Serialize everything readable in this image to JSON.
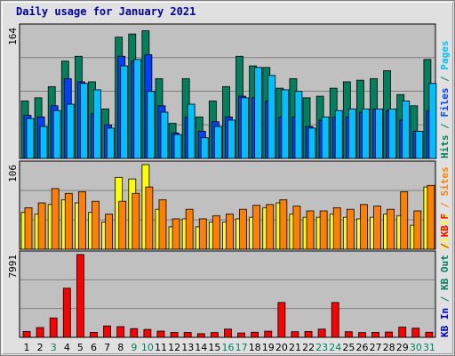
{
  "title": "Daily usage for January 2021",
  "colors": {
    "hits": "#00805c",
    "files": "#0040ff",
    "pages": "#00c0ff",
    "visits": "#ffff00",
    "sites": "#ff8000",
    "kbin": "#0000c0",
    "kbout": "#008060",
    "kbf": "#ff0000",
    "weekend": "#00805c",
    "weekday": "#000000",
    "panel": "#c0c0c0"
  },
  "chart_data": [
    {
      "type": "bar",
      "name": "hits-files-pages",
      "ymax_label": "164",
      "ylim": [
        0,
        164
      ],
      "categories": [
        "1",
        "2",
        "3",
        "4",
        "5",
        "6",
        "7",
        "8",
        "9",
        "10",
        "11",
        "12",
        "13",
        "14",
        "15",
        "16",
        "17",
        "18",
        "19",
        "20",
        "21",
        "22",
        "23",
        "24",
        "25",
        "26",
        "27",
        "28",
        "29",
        "30",
        "31"
      ],
      "right_labels": [
        {
          "text": "Hits",
          "color": "#00805c"
        },
        {
          "text": "/",
          "color": "#00805c"
        },
        {
          "text": "Files",
          "color": "#0040ff"
        },
        {
          "text": "/",
          "color": "#00805c"
        },
        {
          "text": "Pages",
          "color": "#00c0ff"
        }
      ],
      "series": [
        {
          "name": "Hits",
          "color": "#00805c",
          "values": [
            72,
            76,
            90,
            122,
            128,
            96,
            62,
            152,
            156,
            160,
            100,
            44,
            100,
            52,
            72,
            90,
            128,
            116,
            114,
            88,
            100,
            76,
            78,
            88,
            96,
            98,
            100,
            110,
            80,
            66,
            124
          ]
        },
        {
          "name": "Files",
          "color": "#0040ff",
          "values": [
            54,
            52,
            66,
            100,
            96,
            56,
            42,
            128,
            122,
            130,
            66,
            32,
            52,
            34,
            46,
            52,
            78,
            76,
            72,
            52,
            52,
            40,
            48,
            52,
            52,
            58,
            62,
            60,
            48,
            34,
            60
          ]
        },
        {
          "name": "Pages",
          "color": "#00c0ff",
          "values": [
            50,
            40,
            60,
            68,
            94,
            86,
            38,
            116,
            124,
            84,
            58,
            30,
            68,
            26,
            40,
            48,
            76,
            114,
            104,
            86,
            84,
            38,
            52,
            60,
            62,
            62,
            62,
            62,
            72,
            34,
            94
          ]
        }
      ]
    },
    {
      "type": "bar",
      "name": "visits-sites",
      "ymax_label": "106",
      "ylim": [
        0,
        106
      ],
      "right_labels": [
        {
          "text": "Visits",
          "color": "#ffff00"
        },
        {
          "text": "/",
          "color": "#ff8000"
        },
        {
          "text": "Sites",
          "color": "#ff8000"
        }
      ],
      "series": [
        {
          "name": "Visits",
          "color": "#ffff00",
          "values": [
            46,
            44,
            56,
            62,
            58,
            46,
            34,
            90,
            88,
            106,
            50,
            28,
            38,
            28,
            34,
            34,
            38,
            40,
            52,
            58,
            44,
            40,
            40,
            44,
            40,
            38,
            40,
            44,
            42,
            30,
            78
          ]
        },
        {
          "name": "Sites",
          "color": "#ff8000",
          "values": [
            52,
            58,
            76,
            70,
            72,
            60,
            44,
            60,
            70,
            78,
            62,
            38,
            50,
            38,
            42,
            44,
            50,
            55,
            56,
            62,
            54,
            48,
            48,
            52,
            50,
            56,
            54,
            50,
            72,
            48,
            80
          ]
        }
      ]
    },
    {
      "type": "bar",
      "name": "kbytes",
      "ymax_label": "7991",
      "ylim": [
        0,
        7991
      ],
      "right_labels": [
        {
          "text": "KB In",
          "color": "#0000c0"
        },
        {
          "text": "/",
          "color": "#008060"
        },
        {
          "text": "KB Out",
          "color": "#008060"
        },
        {
          "text": "/",
          "color": "#ff0000"
        },
        {
          "text": "KB F",
          "color": "#ff0000"
        }
      ],
      "series": [
        {
          "name": "KB F",
          "color": "#ff0000",
          "values": [
            560,
            940,
            1870,
            4740,
            7991,
            480,
            1100,
            1030,
            840,
            760,
            600,
            470,
            470,
            350,
            460,
            790,
            420,
            490,
            590,
            3360,
            540,
            560,
            790,
            3360,
            540,
            460,
            480,
            510,
            980,
            880,
            490
          ]
        }
      ]
    }
  ],
  "weekend_days": [
    3,
    9,
    10,
    16,
    17,
    23,
    24,
    30,
    31
  ]
}
